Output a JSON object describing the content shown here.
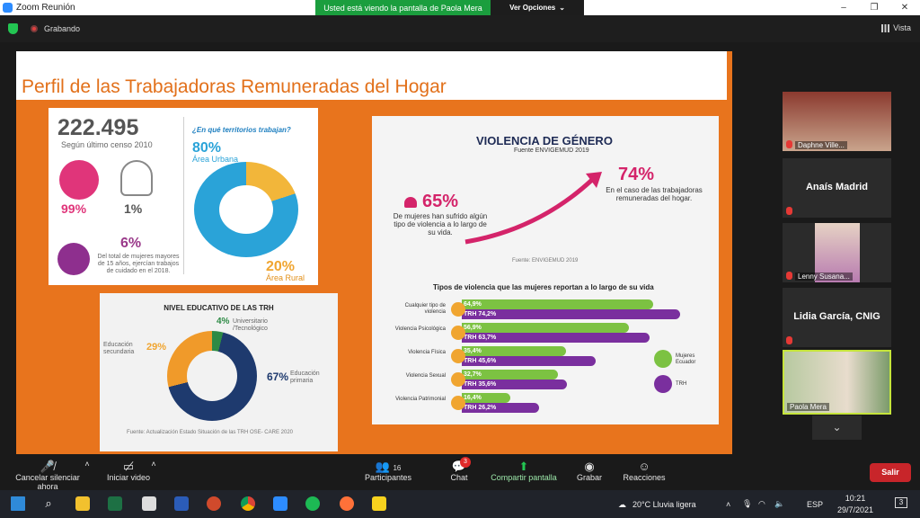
{
  "titlebar": {
    "app_title": "Zoom Reunión"
  },
  "share_banner": {
    "text": "Usted está viendo la pantalla de Paola Mera",
    "options_label": "Ver Opciones"
  },
  "meeting": {
    "recording_label": "Grabando",
    "view_label": "Vista"
  },
  "slide": {
    "title": "Perfil de las Trabajadoras Remuneradas del Hogar",
    "panel1": {
      "total": "222.495",
      "total_note": "Según último censo 2010",
      "women_pct": "99%",
      "men_pct": "1%",
      "care_pct": "6%",
      "care_desc": "Del total de mujeres mayores de 15 años, ejercían trabajos de cuidado en el 2018.",
      "territory_question": "¿En qué territorios trabajan?",
      "urban_pct": "80%",
      "urban_label": "Área Urbana",
      "rural_pct": "20%",
      "rural_label": "Área Rural"
    },
    "panel2": {
      "title": "NIVEL EDUCATIVO DE LAS TRH",
      "univ_pct": "4%",
      "univ_label": "Universitario /Tecnológico",
      "sec_pct": "29%",
      "sec_label": "Educación secundaria",
      "prim_pct": "67%",
      "prim_label": "Educación primaria",
      "source": "Fuente: Actualización Estado Situación de las TRH OSE- CARE 2020"
    },
    "panel3": {
      "title": "VIOLENCIA DE GÉNERO",
      "subtitle": "Fuente ENVIGEMUD 2019",
      "pct_a": "65%",
      "desc_a": "De mujeres han sufrido algún tipo de violencia a lo largo de su vida.",
      "pct_b": "74%",
      "desc_b": "En el caso de las trabajadoras remuneradas del hogar.",
      "source": "Fuente: ENVIGEMUD 2019",
      "chart_title": "Tipos de violencia que las mujeres reportan a lo largo de su vida",
      "legend_green": "Mujeres Ecuador",
      "legend_purple": "TRH"
    }
  },
  "chart_data": {
    "type": "bar",
    "title": "Tipos de violencia que las mujeres reportan a lo largo de su vida",
    "categories": [
      "Cualquier tipo de violencia",
      "Violencia Psicológica",
      "Violencia Física",
      "Violencia Sexual",
      "Violencia Patrimonial"
    ],
    "series": [
      {
        "name": "Mujeres Ecuador",
        "values": [
          64.9,
          56.9,
          35.4,
          32.7,
          16.4
        ],
        "labels": [
          "64,9%",
          "56,9%",
          "35,4%",
          "32,7%",
          "16,4%"
        ],
        "color": "#7cc242"
      },
      {
        "name": "TRH",
        "values": [
          74.2,
          63.7,
          45.6,
          35.6,
          26.2
        ],
        "labels": [
          "TRH 74,2%",
          "TRH 63,7%",
          "TRH 45,6%",
          "TRH 35,6%",
          "TRH 26,2%"
        ],
        "color": "#7a2f9e"
      }
    ],
    "xlim": [
      0,
      80
    ],
    "legend": "right"
  },
  "participants": [
    {
      "name": "Daphne Ville...",
      "video": true
    },
    {
      "name": "Anaís Madrid",
      "video": false
    },
    {
      "name": "Lenny Susana...",
      "video": true
    },
    {
      "name": "Lidia García, CNIG",
      "video": false
    },
    {
      "name": "Paola Mera",
      "video": true,
      "active": true
    }
  ],
  "toolbar": {
    "mute": "Cancelar silenciar ahora",
    "video": "Iniciar video",
    "participants": "Participantes",
    "participants_count": "16",
    "chat": "Chat",
    "chat_badge": "3",
    "share": "Compartir pantalla",
    "record": "Grabar",
    "reactions": "Reacciones",
    "leave": "Salir"
  },
  "taskbar": {
    "weather": "20°C  Lluvia ligera",
    "lang": "ESP",
    "time": "10:21",
    "date": "29/7/2021",
    "notif_count": "3"
  },
  "colors": {
    "orange": "#e8741d",
    "zoom_green": "#23c552",
    "leave_red": "#c8252a"
  }
}
